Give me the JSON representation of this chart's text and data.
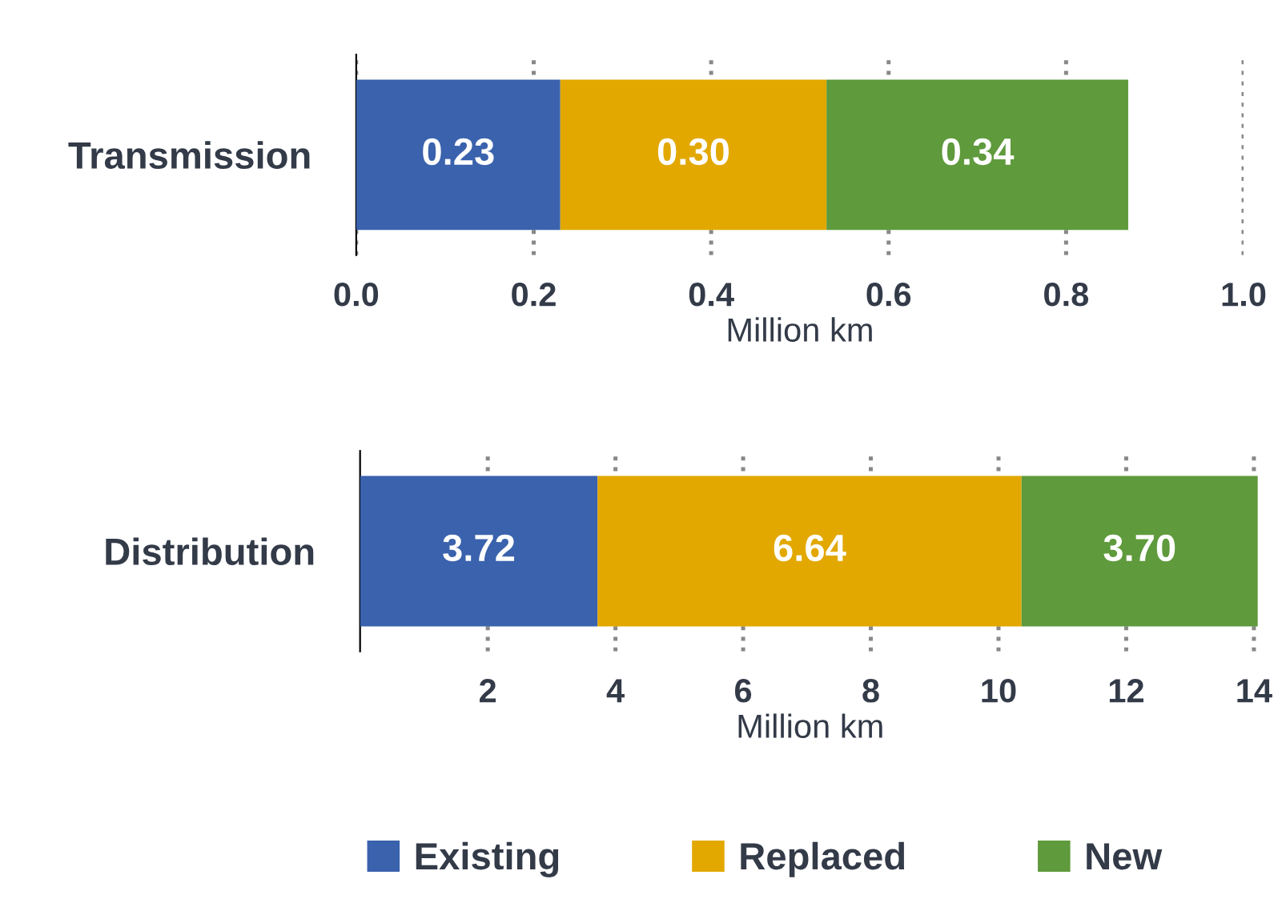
{
  "chart_data": [
    {
      "type": "bar",
      "orientation": "horizontal",
      "stacked": true,
      "categories": [
        "Transmission"
      ],
      "xlabel": "Million km",
      "xlim": [
        0,
        1.0
      ],
      "xticks": [
        {
          "value": 0,
          "label": "0.0"
        },
        0.2,
        0.4,
        0.6,
        0.8,
        {
          "value": 1,
          "label": "1.0"
        }
      ],
      "grid": "x",
      "series": [
        {
          "color": "#3a62ad",
          "values": [
            0.23
          ],
          "value_labels": [
            "0.23"
          ]
        },
        {
          "color": "#e2a800",
          "values": [
            0.3
          ],
          "value_labels": [
            "0.30"
          ]
        },
        {
          "color": "#5f9a3c",
          "values": [
            0.34
          ],
          "value_labels": [
            "0.34"
          ]
        }
      ]
    },
    {
      "type": "bar",
      "orientation": "horizontal",
      "stacked": true,
      "categories": [
        "Distribution"
      ],
      "xlabel": "Million km",
      "xlim": [
        0,
        14.1
      ],
      "xticks": [
        2,
        4,
        6,
        8,
        10,
        12,
        14
      ],
      "grid": "x",
      "legend": "bottom",
      "series": [
        {
          "name": "Existing",
          "color": "#3a62ad",
          "values": [
            3.72
          ],
          "value_labels": [
            "3.72"
          ]
        },
        {
          "name": "Replaced",
          "color": "#e2a800",
          "values": [
            6.64
          ],
          "value_labels": [
            "6.64"
          ]
        },
        {
          "name": "New",
          "color": "#5f9a3c",
          "values": [
            3.7
          ],
          "value_labels": [
            "3.70"
          ]
        }
      ]
    }
  ]
}
